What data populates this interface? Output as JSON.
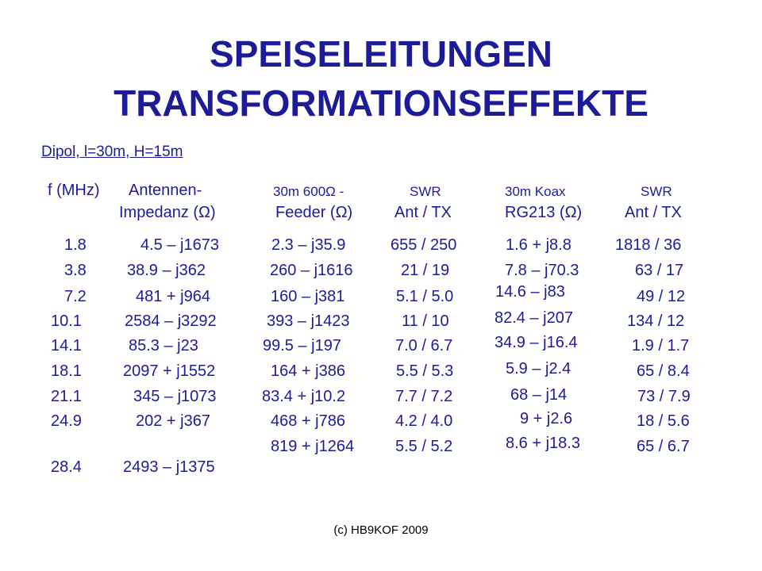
{
  "title": {
    "line1": "SPEISELEITUNGEN",
    "line2": "TRANSFORMATIONSEFFEKTE"
  },
  "subtitle": "Dipol, l=30m, H=15m",
  "headers": {
    "freq": "f (MHz)",
    "antenna_line1": "Antennen-",
    "antenna_line2": "Impedanz (Ω)",
    "feeder_line1": "30m 600Ω -",
    "feeder_line2": "Feeder (Ω)",
    "swr1_line1": "SWR",
    "swr1_line2": "Ant / TX",
    "coax_line1": "30m Koax",
    "coax_line2": "RG213 (Ω)",
    "swr2_line1": "SWR",
    "swr2_line2": "Ant / TX"
  },
  "rows": [
    {
      "f": "1.8",
      "antenna": "4.5 – j1673",
      "feeder": "2.3 – j35.9",
      "swr1": "655 / 250",
      "coax": "1.6 + j8.8",
      "swr2": "1818 / 36"
    },
    {
      "f": "3.8",
      "antenna": "38.9 – j362",
      "feeder": "260 – j1616",
      "swr1": "21 / 19",
      "coax": "7.8 – j70.3",
      "swr2": "63 / 17"
    },
    {
      "f": "7.2",
      "antenna": "481 + j964",
      "feeder": "160 – j381",
      "swr1": "5.1 / 5.0",
      "coax": "14.6 – j83",
      "swr2": "49 / 12"
    },
    {
      "f": "10.1",
      "antenna": "2584 – j3292",
      "feeder": "393 – j1423",
      "swr1": "11 / 10",
      "coax": "82.4 – j207",
      "swr2": "134 / 12"
    },
    {
      "f": "14.1",
      "antenna": "85.3 – j23",
      "feeder": "99.5 – j197",
      "swr1": "7.0 / 6.7",
      "coax": "34.9 – j16.4",
      "swr2": "1.9 / 1.7"
    },
    {
      "f": "18.1",
      "antenna": "2097 + j1552",
      "feeder": "164 + j386",
      "swr1": "5.5 / 5.3",
      "coax": "5.9 – j2.4",
      "swr2": "65 / 8.4"
    },
    {
      "f": "21.1",
      "antenna": "345 – j1073",
      "feeder": "83.4 + j10.2",
      "swr1": "7.7 / 7.2",
      "coax": "68 – j14",
      "swr2": "73 / 7.9"
    },
    {
      "f": "24.9",
      "antenna": "202 + j367",
      "feeder": "468 + j786",
      "swr1": "4.2 / 4.0",
      "coax": "9 + j2.6",
      "swr2": "18 / 5.6"
    },
    {
      "f": "28.4",
      "antenna": "2493 – j1375",
      "feeder": "819 + j1264",
      "swr1": "5.5 / 5.2",
      "coax": "8.6 + j18.3",
      "swr2": "65 / 6.7"
    }
  ],
  "footer": "(c) HB9KOF 2009"
}
